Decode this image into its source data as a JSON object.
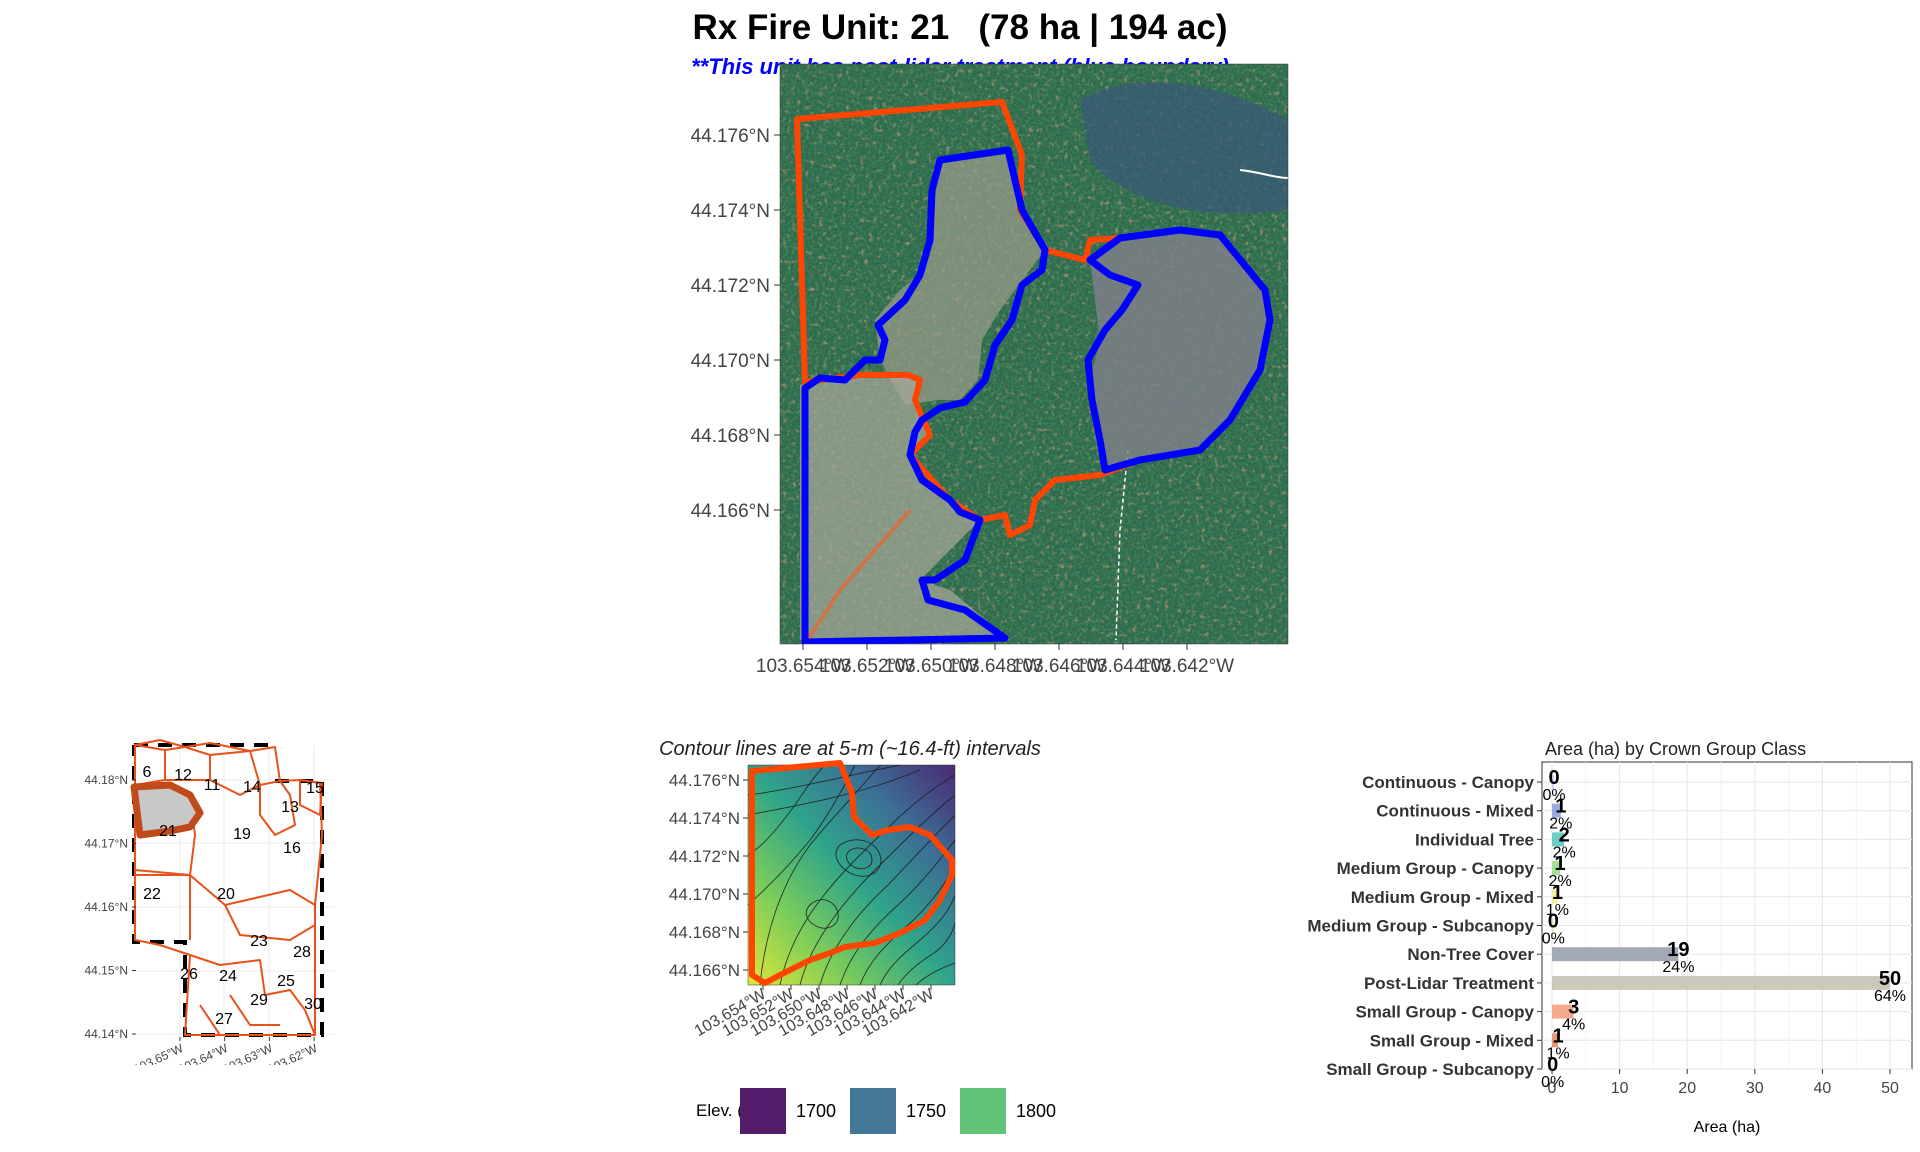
{
  "title": "Rx Fire Unit: 21   (78 ha | 194 ac)",
  "subtitle": "**This unit has post-lidar treatment (blue boundary)",
  "colors": {
    "unit_boundary": "#ff4500",
    "treatment_boundary": "#0000ff",
    "bar_fill": "#c8c3b3"
  },
  "main_map": {
    "y_ticks": [
      "44.176°N",
      "44.174°N",
      "44.172°N",
      "44.170°N",
      "44.168°N",
      "44.166°N"
    ],
    "x_ticks": [
      "103.654°W",
      "103.652°W",
      "103.650°W",
      "103.648°W",
      "103.646°W",
      "103.644°W",
      "103.642°W"
    ]
  },
  "locator_map": {
    "y_ticks": [
      "44.18°N",
      "44.17°N",
      "44.16°N",
      "44.15°N",
      "44.14°N"
    ],
    "x_ticks": [
      "103.65°W",
      "103.64°W",
      "103.63°W",
      "103.62°W"
    ],
    "unit_labels": [
      "6",
      "12",
      "11",
      "14",
      "13",
      "15",
      "21",
      "19",
      "16",
      "22",
      "20",
      "23",
      "28",
      "26",
      "24",
      "25",
      "29",
      "30",
      "27"
    ]
  },
  "contour_map": {
    "title": "Contour lines are at 5-m (~16.4-ft) intervals",
    "y_ticks": [
      "44.176°N",
      "44.174°N",
      "44.172°N",
      "44.170°N",
      "44.168°N",
      "44.166°N"
    ],
    "x_ticks": [
      "103.654°W",
      "103.652°W",
      "103.650°W",
      "103.648°W",
      "103.646°W",
      "103.644°W",
      "103.642°W"
    ],
    "legend": {
      "title": "Elev. (m)",
      "items": [
        {
          "label": "1700",
          "color": "#541d6b"
        },
        {
          "label": "1750",
          "color": "#447897"
        },
        {
          "label": "1800",
          "color": "#62c276"
        }
      ]
    }
  },
  "chart_data": {
    "type": "bar",
    "orientation": "horizontal",
    "title": "Area (ha) by Crown Group Class",
    "xlabel": "Area (ha)",
    "ylabel": "",
    "xlim": [
      0,
      52
    ],
    "x_ticks": [
      "0",
      "10",
      "20",
      "30",
      "40",
      "50"
    ],
    "grid": true,
    "categories": [
      "Continuous - Canopy",
      "Continuous - Mixed",
      "Individual Tree",
      "Medium Group - Canopy",
      "Medium Group - Mixed",
      "Medium Group - Subcanopy",
      "Non-Tree Cover",
      "Post-Lidar Treatment",
      "Small Group - Canopy",
      "Small Group - Mixed",
      "Small Group - Subcanopy"
    ],
    "values": [
      0.3,
      1.3,
      1.8,
      1.2,
      0.8,
      0.2,
      18.7,
      50,
      3.2,
      0.9,
      0.1
    ],
    "value_labels": [
      "0",
      "1",
      "2",
      "1",
      "1",
      "0",
      "19",
      "50",
      "3",
      "1",
      "0"
    ],
    "pct_labels": [
      "0%",
      "2%",
      "2%",
      "2%",
      "1%",
      "0%",
      "24%",
      "64%",
      "4%",
      "1%",
      "0%"
    ],
    "colors": [
      "#ccd1f5",
      "#8fa3dc",
      "#5cc8c0",
      "#9ddc8e",
      "#f0ef8c",
      "#f2d8a8",
      "#9aa0b0",
      "#c8c3b3",
      "#f6a07f",
      "#e78c6c",
      "#d8d8d8"
    ]
  }
}
